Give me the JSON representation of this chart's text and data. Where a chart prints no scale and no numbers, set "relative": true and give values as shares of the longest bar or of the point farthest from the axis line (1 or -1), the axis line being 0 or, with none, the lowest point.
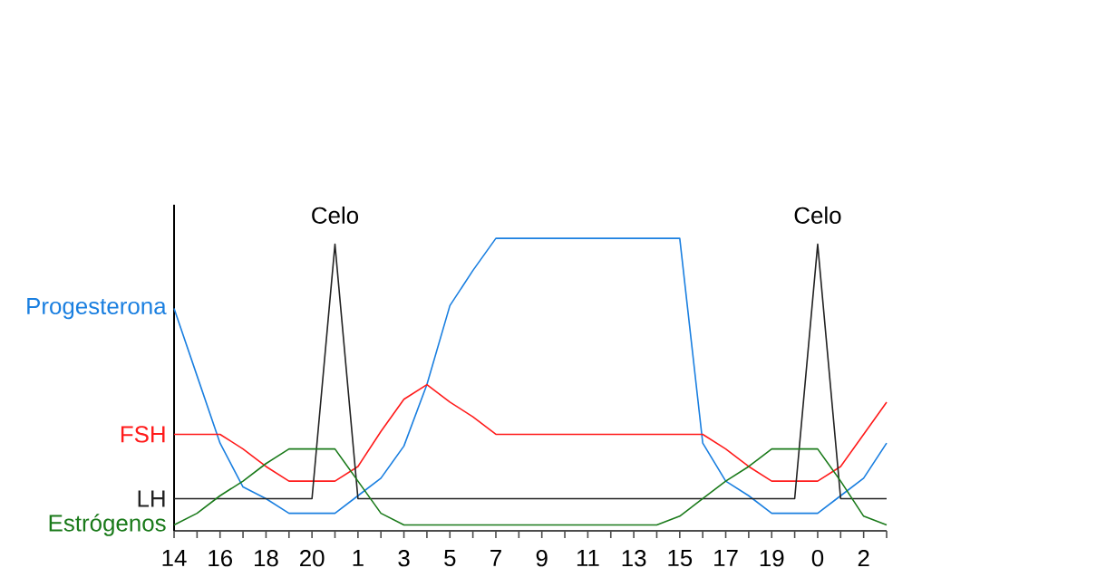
{
  "chart_data": {
    "type": "line",
    "relative": true,
    "categories": [
      "14",
      null,
      "16",
      null,
      "18",
      null,
      "20",
      null,
      "1",
      null,
      "3",
      null,
      "5",
      null,
      "7",
      null,
      "9",
      null,
      "11",
      null,
      "13",
      null,
      "15",
      null,
      "17",
      null,
      "19",
      null,
      "0",
      null,
      "2",
      null
    ],
    "series": [
      {
        "name": "Progesterona",
        "color": "#1a7fe0",
        "values": [
          0.76,
          0.53,
          0.3,
          0.15,
          0.11,
          0.06,
          0.06,
          0.06,
          0.12,
          0.18,
          0.29,
          0.5,
          0.77,
          0.89,
          1,
          1,
          1,
          1,
          1,
          1,
          1,
          1,
          1,
          0.3,
          0.17,
          0.12,
          0.06,
          0.06,
          0.06,
          0.12,
          0.18,
          0.3
        ]
      },
      {
        "name": "FSH",
        "color": "#ff1a1a",
        "values": [
          0.33,
          0.33,
          0.33,
          0.28,
          0.22,
          0.17,
          0.17,
          0.17,
          0.22,
          0.34,
          0.45,
          0.5,
          0.44,
          0.39,
          0.33,
          0.33,
          0.33,
          0.33,
          0.33,
          0.33,
          0.33,
          0.33,
          0.33,
          0.33,
          0.28,
          0.22,
          0.17,
          0.17,
          0.17,
          0.22,
          0.33,
          0.44
        ]
      },
      {
        "name": "LH",
        "color": "#222222",
        "values": [
          0.11,
          0.11,
          0.11,
          0.11,
          0.11,
          0.11,
          0.11,
          0.98,
          0.11,
          0.11,
          0.11,
          0.11,
          0.11,
          0.11,
          0.11,
          0.11,
          0.11,
          0.11,
          0.11,
          0.11,
          0.11,
          0.11,
          0.11,
          0.11,
          0.11,
          0.11,
          0.11,
          0.11,
          0.98,
          0.11,
          0.11,
          0.11
        ]
      },
      {
        "name": "Estrógenos",
        "color": "#1a7a1a",
        "values": [
          0.02,
          0.06,
          0.12,
          0.17,
          0.23,
          0.28,
          0.28,
          0.28,
          0.17,
          0.06,
          0.02,
          0.02,
          0.02,
          0.02,
          0.02,
          0.02,
          0.02,
          0.02,
          0.02,
          0.02,
          0.02,
          0.02,
          0.05,
          0.11,
          0.17,
          0.22,
          0.28,
          0.28,
          0.28,
          0.17,
          0.05,
          0.02
        ]
      }
    ],
    "annotations": [
      "Celo",
      "Celo"
    ]
  }
}
